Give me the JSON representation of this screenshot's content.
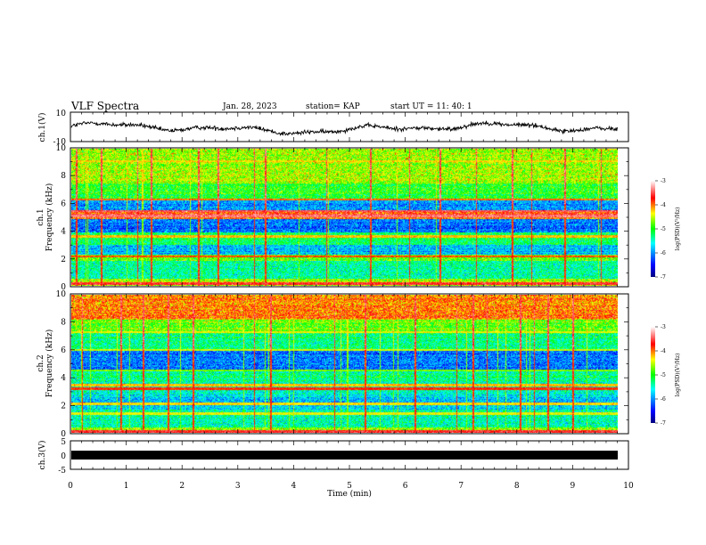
{
  "header": {
    "title": "VLF Spectra",
    "date": "Jan. 28, 2023",
    "station": "station= KAP",
    "start_time": "start  UT =   11: 40: 1"
  },
  "chart_data": [
    {
      "panel": "ch1-waveform",
      "type": "line",
      "ylabel": "ch.1(V)",
      "yticks": [
        "10",
        "-10"
      ],
      "ylim": [
        -10,
        10
      ],
      "xlim": [
        0,
        10
      ],
      "trace": {
        "mean": -1,
        "amplitude": 4.5,
        "color": "#000000"
      }
    },
    {
      "panel": "ch1-spectrogram",
      "type": "heatmap",
      "ylabel_line1": "ch.1",
      "ylabel_line2": "Frequency  (kHz)",
      "yticks": [
        "0",
        "2",
        "4",
        "6",
        "8",
        "10"
      ],
      "ylim": [
        0,
        10
      ],
      "xlim": [
        0,
        9.85
      ],
      "colorbar": {
        "label": "log(PSD)(V²/Hz)",
        "ticks": [
          "-3",
          "-4",
          "-5",
          "-6",
          "-7"
        ],
        "range": [
          -7,
          -3
        ]
      },
      "bands": [
        {
          "f": [
            0.0,
            0.5
          ],
          "level": -4.6
        },
        {
          "f": [
            0.5,
            1.8
          ],
          "level": -5.4
        },
        {
          "f": [
            1.8,
            2.3
          ],
          "level": -4.8
        },
        {
          "f": [
            2.3,
            3.0
          ],
          "level": -5.8
        },
        {
          "f": [
            3.0,
            3.9
          ],
          "level": -5.2
        },
        {
          "f": [
            3.9,
            4.9
          ],
          "level": -6.1
        },
        {
          "f": [
            4.9,
            5.5
          ],
          "level": -3.9
        },
        {
          "f": [
            5.5,
            6.3
          ],
          "level": -6.0
        },
        {
          "f": [
            6.3,
            7.5
          ],
          "level": -5.0
        },
        {
          "f": [
            7.5,
            10.0
          ],
          "level": -4.6
        }
      ],
      "lines": [
        {
          "f": 0.15,
          "level": -3.6
        },
        {
          "f": 2.15,
          "level": -3.9
        },
        {
          "f": 3.6,
          "level": -4.2
        },
        {
          "f": 5.1,
          "level": -3.4
        },
        {
          "f": 5.45,
          "level": -3.5
        },
        {
          "f": 6.3,
          "level": -4.0
        },
        {
          "f": 9.1,
          "level": -4.3
        }
      ],
      "spikes_t": [
        0.1,
        0.55,
        1.2,
        1.45,
        2.3,
        2.65,
        3.3,
        3.5,
        4.6,
        5.4,
        6.1,
        6.65,
        7.3,
        7.95,
        8.3,
        8.9,
        9.55
      ]
    },
    {
      "panel": "ch2-spectrogram",
      "type": "heatmap",
      "ylabel_line1": "ch.2",
      "ylabel_line2": "Frequency  (kHz)",
      "yticks": [
        "0",
        "2",
        "4",
        "6",
        "8",
        "10"
      ],
      "ylim": [
        0,
        10
      ],
      "xlim": [
        0,
        9.85
      ],
      "colorbar": {
        "label": "log(PSD)(V²/Hz)",
        "ticks": [
          "-3",
          "-4",
          "-5",
          "-6",
          "-7"
        ],
        "range": [
          -7,
          -3
        ]
      },
      "bands": [
        {
          "f": [
            0.0,
            0.4
          ],
          "level": -4.6
        },
        {
          "f": [
            0.4,
            1.7
          ],
          "level": -5.4
        },
        {
          "f": [
            1.7,
            2.6
          ],
          "level": -5.8
        },
        {
          "f": [
            2.6,
            3.6
          ],
          "level": -5.6
        },
        {
          "f": [
            3.6,
            4.6
          ],
          "level": -5.3
        },
        {
          "f": [
            4.6,
            6.0
          ],
          "level": -6.1
        },
        {
          "f": [
            6.0,
            7.3
          ],
          "level": -5.3
        },
        {
          "f": [
            7.3,
            8.2
          ],
          "level": -4.8
        },
        {
          "f": [
            8.2,
            10.0
          ],
          "level": -4.0
        }
      ],
      "lines": [
        {
          "f": 0.1,
          "level": -3.6
        },
        {
          "f": 1.4,
          "level": -4.4
        },
        {
          "f": 2.1,
          "level": -4.3
        },
        {
          "f": 3.2,
          "level": -3.8
        },
        {
          "f": 3.45,
          "level": -4.2
        },
        {
          "f": 4.5,
          "level": -4.7
        },
        {
          "f": 6.0,
          "level": -4.5
        },
        {
          "f": 7.3,
          "level": -4.4
        }
      ],
      "spikes_t": [
        0.2,
        0.9,
        1.3,
        1.75,
        2.2,
        3.3,
        3.6,
        4.75,
        5.3,
        6.2,
        6.95,
        7.25,
        7.5,
        8.1,
        8.35,
        8.6,
        9.05
      ]
    },
    {
      "panel": "ch3-waveform",
      "type": "line",
      "ylabel": "ch.3(V)",
      "yticks": [
        "5",
        "0",
        "-5"
      ],
      "ylim": [
        -5,
        5
      ],
      "xlim": [
        0,
        10
      ],
      "trace": {
        "mean": 0,
        "band_height": 1.1,
        "color": "#000000"
      }
    }
  ],
  "xaxis": {
    "label": "Time  (min)",
    "ticks": [
      "0",
      "1",
      "2",
      "3",
      "4",
      "5",
      "6",
      "7",
      "8",
      "9",
      "10"
    ],
    "range": [
      0,
      10
    ]
  }
}
